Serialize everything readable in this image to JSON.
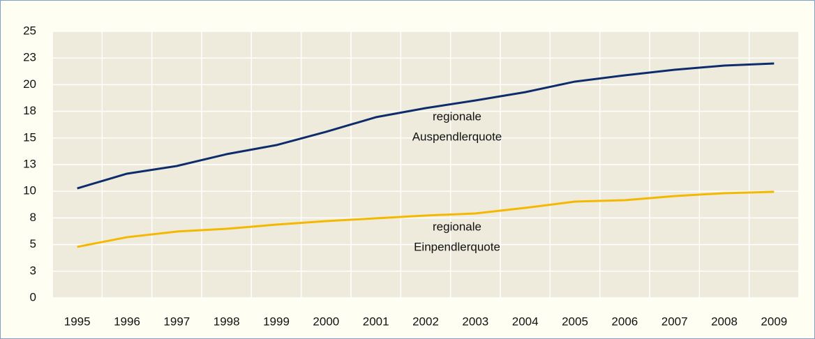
{
  "chart_data": {
    "type": "line",
    "categories": [
      "1995",
      "1996",
      "1997",
      "1998",
      "1999",
      "2000",
      "2001",
      "2002",
      "2003",
      "2004",
      "2005",
      "2006",
      "2007",
      "2008",
      "2009"
    ],
    "series": [
      {
        "name": "regionale Auspendlerquote",
        "color": "#0e2c6b",
        "values": [
          10.27,
          11.65,
          12.37,
          13.48,
          14.33,
          15.58,
          16.95,
          17.8,
          18.52,
          19.3,
          20.29,
          20.88,
          21.4,
          21.79,
          21.99
        ]
      },
      {
        "name": "regionale Einpendlerquote",
        "color": "#f5b800",
        "values": [
          4.78,
          5.69,
          6.22,
          6.48,
          6.87,
          7.2,
          7.46,
          7.72,
          7.92,
          8.44,
          9.03,
          9.16,
          9.55,
          9.82,
          9.95
        ]
      }
    ],
    "annotations": [
      {
        "lines": [
          "regionale",
          "Auspendlerquote"
        ]
      },
      {
        "lines": [
          "regionale",
          "Einpendlerquote"
        ]
      }
    ],
    "ylim": [
      0,
      25
    ],
    "yticks": [
      0,
      {
        "value": 2.5,
        "label": "3"
      },
      5,
      {
        "value": 7.5,
        "label": "8"
      },
      10,
      {
        "value": 12.5,
        "label": "13"
      },
      15,
      {
        "value": 17.5,
        "label": "18"
      },
      20,
      {
        "value": 22.5,
        "label": "23"
      },
      25
    ],
    "grid": true
  }
}
